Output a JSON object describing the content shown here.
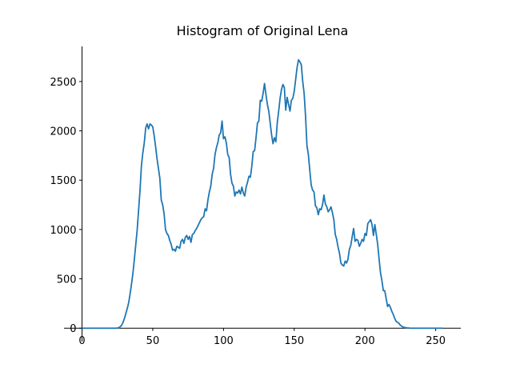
{
  "chart_data": {
    "type": "line",
    "title": "Histogram of Original Lena",
    "color": "#1f77b4",
    "x": [
      0,
      1,
      2,
      3,
      4,
      5,
      6,
      7,
      8,
      9,
      10,
      11,
      12,
      13,
      14,
      15,
      16,
      17,
      18,
      19,
      20,
      21,
      22,
      23,
      24,
      25,
      26,
      27,
      28,
      29,
      30,
      31,
      32,
      33,
      34,
      35,
      36,
      37,
      38,
      39,
      40,
      41,
      42,
      43,
      44,
      45,
      46,
      47,
      48,
      49,
      50,
      51,
      52,
      53,
      54,
      55,
      56,
      57,
      58,
      59,
      60,
      61,
      62,
      63,
      64,
      65,
      66,
      67,
      68,
      69,
      70,
      71,
      72,
      73,
      74,
      75,
      76,
      77,
      78,
      79,
      80,
      81,
      82,
      83,
      84,
      85,
      86,
      87,
      88,
      89,
      90,
      91,
      92,
      93,
      94,
      95,
      96,
      97,
      98,
      99,
      100,
      101,
      102,
      103,
      104,
      105,
      106,
      107,
      108,
      109,
      110,
      111,
      112,
      113,
      114,
      115,
      116,
      117,
      118,
      119,
      120,
      121,
      122,
      123,
      124,
      125,
      126,
      127,
      128,
      129,
      130,
      131,
      132,
      133,
      134,
      135,
      136,
      137,
      138,
      139,
      140,
      141,
      142,
      143,
      144,
      145,
      146,
      147,
      148,
      149,
      150,
      151,
      152,
      153,
      154,
      155,
      156,
      157,
      158,
      159,
      160,
      161,
      162,
      163,
      164,
      165,
      166,
      167,
      168,
      169,
      170,
      171,
      172,
      173,
      174,
      175,
      176,
      177,
      178,
      179,
      180,
      181,
      182,
      183,
      184,
      185,
      186,
      187,
      188,
      189,
      190,
      191,
      192,
      193,
      194,
      195,
      196,
      197,
      198,
      199,
      200,
      201,
      202,
      203,
      204,
      205,
      206,
      207,
      208,
      209,
      210,
      211,
      212,
      213,
      214,
      215,
      216,
      217,
      218,
      219,
      220,
      221,
      222,
      223,
      224,
      225,
      226,
      227,
      228,
      229,
      230,
      231,
      232,
      233,
      234,
      235,
      236,
      237,
      238,
      239,
      240,
      241,
      242,
      243,
      244,
      245,
      246,
      247,
      248,
      249,
      250,
      251,
      252,
      253,
      254,
      255
    ],
    "values": [
      0,
      0,
      0,
      0,
      0,
      0,
      0,
      0,
      0,
      0,
      0,
      0,
      0,
      0,
      0,
      0,
      0,
      0,
      0,
      0,
      0,
      0,
      0,
      0,
      0,
      2,
      5,
      15,
      30,
      60,
      100,
      150,
      200,
      260,
      350,
      450,
      560,
      700,
      850,
      1000,
      1200,
      1400,
      1650,
      1780,
      1880,
      2030,
      2070,
      2020,
      2070,
      2060,
      2040,
      1950,
      1840,
      1720,
      1620,
      1520,
      1300,
      1250,
      1160,
      1000,
      960,
      940,
      890,
      850,
      790,
      800,
      780,
      830,
      820,
      810,
      880,
      900,
      860,
      920,
      940,
      900,
      930,
      870,
      950,
      960,
      990,
      1010,
      1040,
      1070,
      1100,
      1120,
      1130,
      1210,
      1190,
      1300,
      1380,
      1440,
      1560,
      1620,
      1760,
      1830,
      1880,
      1960,
      1980,
      2100,
      1920,
      1940,
      1880,
      1760,
      1730,
      1560,
      1470,
      1440,
      1340,
      1380,
      1370,
      1400,
      1360,
      1430,
      1370,
      1340,
      1430,
      1480,
      1540,
      1530,
      1640,
      1790,
      1800,
      1930,
      2080,
      2100,
      2310,
      2300,
      2380,
      2480,
      2370,
      2270,
      2200,
      2080,
      1960,
      1870,
      1930,
      1890,
      2080,
      2200,
      2330,
      2420,
      2470,
      2440,
      2210,
      2340,
      2270,
      2200,
      2310,
      2330,
      2400,
      2520,
      2640,
      2720,
      2700,
      2670,
      2500,
      2380,
      2150,
      1850,
      1760,
      1600,
      1450,
      1400,
      1380,
      1240,
      1220,
      1150,
      1210,
      1200,
      1250,
      1350,
      1260,
      1230,
      1180,
      1200,
      1230,
      1170,
      1100,
      950,
      900,
      820,
      760,
      660,
      640,
      630,
      680,
      660,
      700,
      800,
      840,
      930,
      1010,
      880,
      900,
      890,
      830,
      860,
      900,
      880,
      960,
      940,
      1060,
      1080,
      1100,
      1050,
      940,
      1050,
      950,
      850,
      700,
      560,
      480,
      380,
      380,
      300,
      220,
      240,
      210,
      170,
      140,
      100,
      70,
      60,
      50,
      30,
      20,
      10,
      8,
      5,
      3,
      2,
      0,
      0,
      0,
      0,
      0,
      0,
      0,
      0,
      0,
      0,
      0,
      0,
      0,
      0,
      0,
      0,
      0,
      0,
      0,
      0,
      0,
      0,
      0,
      0
    ],
    "xlim": [
      -12.75,
      267.75
    ],
    "xticks": [
      0,
      50,
      100,
      150,
      200,
      250
    ],
    "ylim": [
      -136,
      2856
    ],
    "yticks": [
      0,
      500,
      1000,
      1500,
      2000,
      2500
    ]
  }
}
